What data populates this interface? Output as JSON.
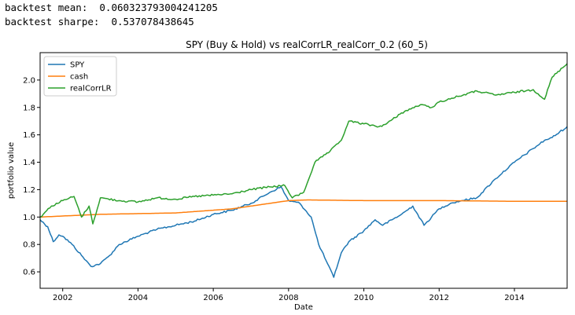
{
  "output": {
    "line1": "backtest mean:  0.060323793004241205",
    "line2": "backtest sharpe:  0.537078438645"
  },
  "chart_data": {
    "type": "line",
    "title": "SPY (Buy & Hold) vs realCorrLR_realCorr_0.2 (60_5)",
    "xlabel": "Date",
    "ylabel": "portfolio value",
    "xlim": [
      2001.4,
      2015.4
    ],
    "ylim": [
      0.48,
      2.2
    ],
    "x_ticks": [
      {
        "value": 2002,
        "label": "2002"
      },
      {
        "value": 2004,
        "label": "2004"
      },
      {
        "value": 2006,
        "label": "2006"
      },
      {
        "value": 2008,
        "label": "2008"
      },
      {
        "value": 2010,
        "label": "2010"
      },
      {
        "value": 2012,
        "label": "2012"
      },
      {
        "value": 2014,
        "label": "2014"
      }
    ],
    "y_ticks": [
      {
        "value": 0.6,
        "label": "0.6"
      },
      {
        "value": 0.8,
        "label": "0.8"
      },
      {
        "value": 1.0,
        "label": "1.0"
      },
      {
        "value": 1.2,
        "label": "1.2"
      },
      {
        "value": 1.4,
        "label": "1.4"
      },
      {
        "value": 1.6,
        "label": "1.6"
      },
      {
        "value": 1.8,
        "label": "1.8"
      },
      {
        "value": 2.0,
        "label": "2.0"
      }
    ],
    "grid": false,
    "legend_position": "top-left",
    "series": [
      {
        "name": "SPY",
        "color": "#1f77b4",
        "x": [
          2001.4,
          2001.6,
          2001.75,
          2001.9,
          2002.0,
          2002.25,
          2002.5,
          2002.75,
          2003.0,
          2003.25,
          2003.5,
          2004.0,
          2004.5,
          2005.0,
          2005.5,
          2006.0,
          2006.5,
          2007.0,
          2007.5,
          2007.8,
          2008.0,
          2008.3,
          2008.6,
          2008.8,
          2009.0,
          2009.2,
          2009.4,
          2009.6,
          2010.0,
          2010.3,
          2010.5,
          2011.0,
          2011.3,
          2011.6,
          2011.8,
          2012.0,
          2012.3,
          2012.6,
          2013.0,
          2013.5,
          2014.0,
          2014.5,
          2014.8,
          2015.0,
          2015.4
        ],
        "values": [
          0.98,
          0.93,
          0.82,
          0.87,
          0.86,
          0.8,
          0.72,
          0.64,
          0.66,
          0.72,
          0.8,
          0.86,
          0.91,
          0.94,
          0.97,
          1.02,
          1.05,
          1.1,
          1.18,
          1.22,
          1.12,
          1.1,
          1.0,
          0.8,
          0.68,
          0.56,
          0.74,
          0.82,
          0.9,
          0.98,
          0.94,
          1.02,
          1.08,
          0.94,
          1.0,
          1.06,
          1.1,
          1.12,
          1.14,
          1.28,
          1.4,
          1.5,
          1.56,
          1.58,
          1.66
        ]
      },
      {
        "name": "cash",
        "color": "#ff7f0e",
        "x": [
          2001.4,
          2003.0,
          2005.0,
          2006.5,
          2007.5,
          2008.0,
          2008.5,
          2010.0,
          2012.0,
          2014.0,
          2015.4
        ],
        "values": [
          1.0,
          1.02,
          1.03,
          1.06,
          1.1,
          1.12,
          1.125,
          1.12,
          1.12,
          1.115,
          1.115
        ]
      },
      {
        "name": "realCorrLR",
        "color": "#2ca02c",
        "x": [
          2001.4,
          2001.7,
          2002.0,
          2002.3,
          2002.5,
          2002.7,
          2002.8,
          2003.0,
          2003.5,
          2004.0,
          2004.5,
          2005.0,
          2005.5,
          2006.0,
          2006.5,
          2007.0,
          2007.5,
          2007.9,
          2008.1,
          2008.4,
          2008.7,
          2008.9,
          2009.1,
          2009.4,
          2009.6,
          2010.0,
          2010.4,
          2010.6,
          2011.0,
          2011.5,
          2011.8,
          2012.0,
          2012.5,
          2013.0,
          2013.5,
          2014.0,
          2014.5,
          2014.8,
          2015.0,
          2015.4
        ],
        "values": [
          1.0,
          1.08,
          1.12,
          1.15,
          1.0,
          1.08,
          0.95,
          1.14,
          1.12,
          1.11,
          1.14,
          1.13,
          1.15,
          1.16,
          1.17,
          1.2,
          1.22,
          1.23,
          1.14,
          1.18,
          1.4,
          1.44,
          1.48,
          1.56,
          1.7,
          1.68,
          1.66,
          1.68,
          1.76,
          1.82,
          1.8,
          1.84,
          1.88,
          1.92,
          1.89,
          1.91,
          1.93,
          1.86,
          2.02,
          2.12
        ]
      }
    ]
  }
}
